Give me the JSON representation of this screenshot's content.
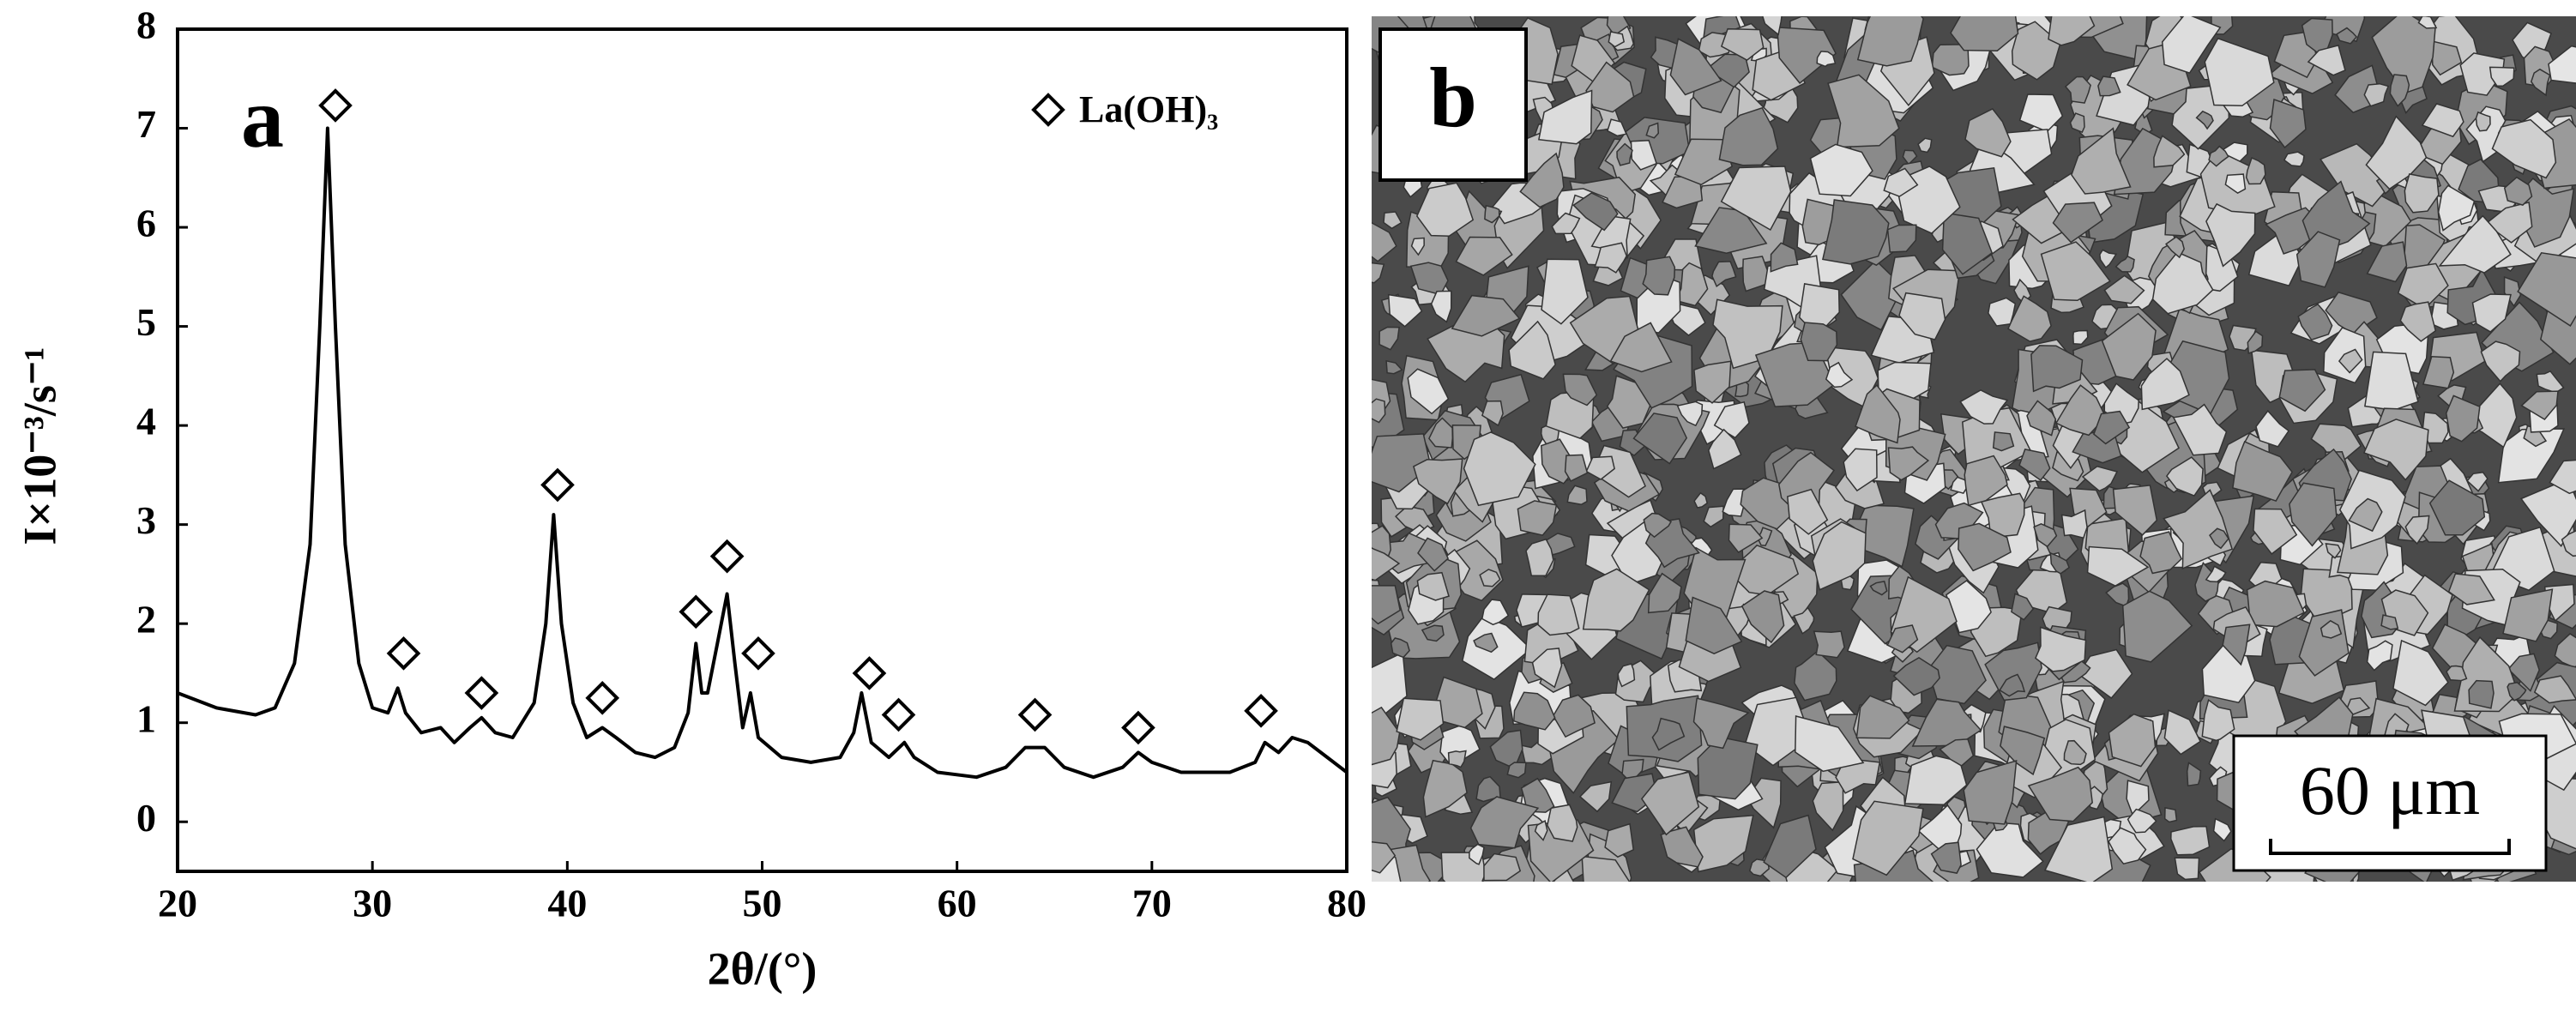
{
  "chart_data": {
    "type": "line",
    "panel_label": "a",
    "xlabel": "2θ/(°)",
    "ylabel": "I×10⁻³/s⁻¹",
    "xlim": [
      20,
      80
    ],
    "xticks": [
      20,
      30,
      40,
      50,
      60,
      70,
      80
    ],
    "ylim": [
      -0.5,
      8
    ],
    "yticks": [
      0,
      1,
      2,
      3,
      4,
      5,
      6,
      7,
      8
    ],
    "legend": "upper right",
    "series": [
      {
        "color": "#000000",
        "style": "line",
        "x": [
          20,
          22,
          24,
          25,
          26,
          26.8,
          27.3,
          27.7,
          28.1,
          28.6,
          29.3,
          30,
          30.8,
          31.3,
          31.7,
          32.5,
          33.5,
          34.2,
          35,
          35.6,
          36.3,
          37.2,
          38.3,
          38.9,
          39.3,
          39.7,
          40.3,
          41,
          41.8,
          42.5,
          43.5,
          44.5,
          45.5,
          46.2,
          46.6,
          46.9,
          47.2,
          47.7,
          48.2,
          48.6,
          49,
          49.4,
          49.8,
          51,
          52.5,
          54,
          54.7,
          55.1,
          55.6,
          56.5,
          57.3,
          57.8,
          59,
          61,
          62.5,
          63.5,
          64.5,
          65.5,
          67,
          68.5,
          69.3,
          70,
          71.5,
          74,
          75.3,
          75.8,
          76.5,
          77.2,
          78,
          79,
          80
        ],
        "values": [
          1.3,
          1.15,
          1.08,
          1.15,
          1.6,
          2.8,
          5,
          7.0,
          5,
          2.8,
          1.6,
          1.15,
          1.1,
          1.35,
          1.1,
          0.9,
          0.95,
          0.8,
          0.95,
          1.05,
          0.9,
          0.85,
          1.2,
          2.0,
          3.1,
          2.0,
          1.2,
          0.85,
          0.95,
          0.85,
          0.7,
          0.65,
          0.75,
          1.1,
          1.8,
          1.3,
          1.3,
          1.8,
          2.3,
          1.6,
          0.95,
          1.3,
          0.85,
          0.65,
          0.6,
          0.65,
          0.9,
          1.3,
          0.8,
          0.65,
          0.8,
          0.65,
          0.5,
          0.45,
          0.55,
          0.75,
          0.75,
          0.55,
          0.45,
          0.55,
          0.7,
          0.6,
          0.5,
          0.5,
          0.6,
          0.8,
          0.7,
          0.85,
          0.8,
          0.65,
          0.5
        ]
      },
      {
        "name": "La(OH)₃",
        "color": "#000000",
        "style": "diamond",
        "x": [
          28.1,
          31.6,
          35.6,
          39.5,
          41.8,
          46.6,
          48.2,
          49.8,
          55.5,
          57,
          64,
          69.3,
          75.6
        ],
        "values": [
          7.23,
          1.7,
          1.3,
          3.4,
          1.25,
          2.12,
          2.68,
          1.7,
          1.5,
          1.08,
          1.08,
          0.95,
          1.12
        ]
      }
    ]
  },
  "sem_image": {
    "panel_label": "b",
    "scale_bar": "60 μm"
  }
}
